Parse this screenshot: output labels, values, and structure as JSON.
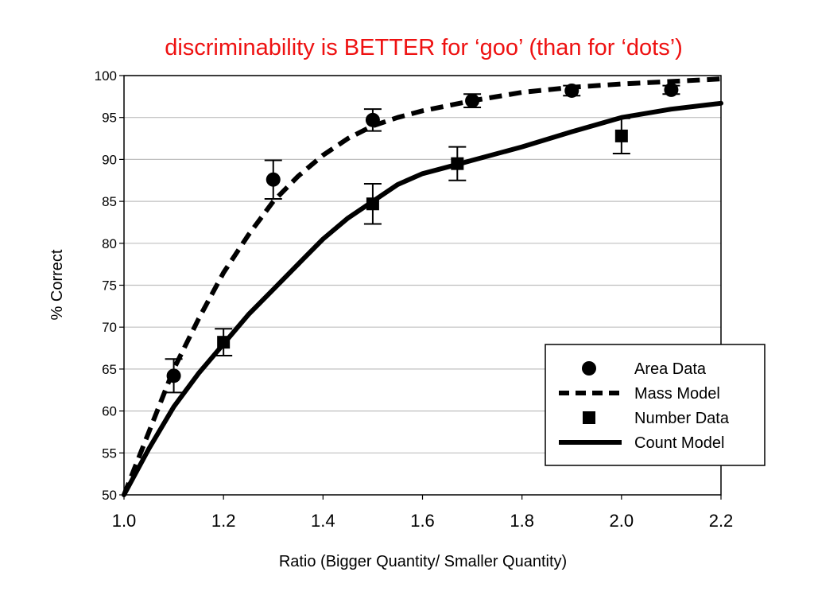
{
  "slide": {
    "title": "discriminability is BETTER for  ‘goo’ (than for ‘dots’)"
  },
  "colors": {
    "title": "#ee1111",
    "ink": "#000000",
    "grid": "#bfbfbf",
    "background": "#ffffff"
  },
  "chart_data": {
    "type": "scatter",
    "title": "",
    "xlabel": "Ratio (Bigger Quantity/ Smaller Quantity)",
    "ylabel": "% Correct",
    "xlim": [
      1.0,
      2.2
    ],
    "ylim": [
      50,
      100
    ],
    "xticks": [
      "1.0",
      "1.2",
      "1.4",
      "1.6",
      "1.8",
      "2.0",
      "2.2"
    ],
    "yticks": [
      "50",
      "55",
      "60",
      "65",
      "70",
      "75",
      "80",
      "85",
      "90",
      "95",
      "100"
    ],
    "grid": "horizontal",
    "legend_position": "bottom-right",
    "series": [
      {
        "name": "Area Data",
        "kind": "points",
        "marker": "circle",
        "points": [
          {
            "x": 1.1,
            "y": 64.2,
            "err": 2.0
          },
          {
            "x": 1.3,
            "y": 87.6,
            "err": 2.3
          },
          {
            "x": 1.5,
            "y": 94.7,
            "err": 1.3
          },
          {
            "x": 1.7,
            "y": 97.0,
            "err": 0.8
          },
          {
            "x": 1.9,
            "y": 98.2,
            "err": 0.6
          },
          {
            "x": 2.1,
            "y": 98.3,
            "err": 0.5
          }
        ]
      },
      {
        "name": "Mass Model",
        "kind": "line",
        "dash": "dashed",
        "x": [
          1.0,
          1.05,
          1.1,
          1.15,
          1.2,
          1.25,
          1.3,
          1.35,
          1.4,
          1.45,
          1.5,
          1.55,
          1.6,
          1.7,
          1.8,
          1.9,
          2.0,
          2.1,
          2.2
        ],
        "y": [
          50.0,
          57.5,
          65.0,
          71.0,
          76.5,
          81.0,
          85.0,
          88.0,
          90.5,
          92.5,
          94.0,
          95.0,
          95.8,
          97.0,
          98.0,
          98.6,
          99.0,
          99.3,
          99.6
        ]
      },
      {
        "name": "Number Data",
        "kind": "points",
        "marker": "square",
        "points": [
          {
            "x": 1.2,
            "y": 68.2,
            "err": 1.6
          },
          {
            "x": 1.5,
            "y": 84.7,
            "err": 2.4
          },
          {
            "x": 1.67,
            "y": 89.5,
            "err": 2.0
          },
          {
            "x": 2.0,
            "y": 92.8,
            "err": 2.1
          }
        ]
      },
      {
        "name": "Count Model",
        "kind": "line",
        "dash": "solid",
        "x": [
          1.0,
          1.05,
          1.1,
          1.15,
          1.2,
          1.25,
          1.3,
          1.35,
          1.4,
          1.45,
          1.5,
          1.55,
          1.6,
          1.67,
          1.7,
          1.8,
          1.9,
          2.0,
          2.1,
          2.2
        ],
        "y": [
          50.0,
          55.5,
          60.5,
          64.5,
          68.0,
          71.5,
          74.5,
          77.5,
          80.5,
          83.0,
          85.0,
          87.0,
          88.3,
          89.4,
          89.9,
          91.5,
          93.3,
          95.0,
          96.0,
          96.7
        ]
      }
    ]
  }
}
